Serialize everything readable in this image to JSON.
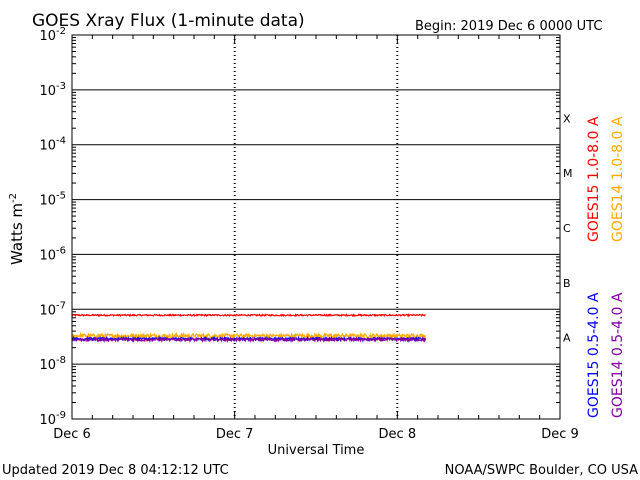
{
  "header": {
    "title": "GOES Xray Flux (1-minute data)",
    "begin": "Begin:  2019 Dec 6 0000 UTC"
  },
  "footer": {
    "updated": "Updated 2019 Dec  8 04:12:12 UTC",
    "credit": "NOAA/SWPC Boulder, CO USA"
  },
  "chart_data": {
    "type": "line",
    "title": "GOES Xray Flux (1-minute data)",
    "xlabel": "Universal Time",
    "ylabel": "Watts m",
    "ylabel_sup": "-2",
    "yscale": "log",
    "ylim": [
      1e-09,
      0.01
    ],
    "xlim": [
      "2019-12-06 00:00",
      "2019-12-09 00:00"
    ],
    "x_ticks": [
      "Dec 6",
      "Dec 7",
      "Dec 8",
      "Dec 9"
    ],
    "y_ticks": [
      {
        "base": "10",
        "exp": "-2",
        "value": 0.01
      },
      {
        "base": "10",
        "exp": "-3",
        "value": 0.001
      },
      {
        "base": "10",
        "exp": "-4",
        "value": 0.0001
      },
      {
        "base": "10",
        "exp": "-5",
        "value": 1e-05
      },
      {
        "base": "10",
        "exp": "-6",
        "value": 1e-06
      },
      {
        "base": "10",
        "exp": "-7",
        "value": 1e-07
      },
      {
        "base": "10",
        "exp": "-8",
        "value": 1e-08
      },
      {
        "base": "10",
        "exp": "-9",
        "value": 1e-09
      }
    ],
    "flare_classes": [
      {
        "label": "X",
        "low": 0.0001,
        "high": 0.001
      },
      {
        "label": "M",
        "low": 1e-05,
        "high": 0.0001
      },
      {
        "label": "C",
        "low": 1e-06,
        "high": 1e-05
      },
      {
        "label": "B",
        "low": 1e-07,
        "high": 1e-06
      },
      {
        "label": "A",
        "low": 1e-08,
        "high": 1e-07
      }
    ],
    "data_end": "2019-12-08 04:12",
    "series": [
      {
        "name": "GOES15 1.0-8.0 A",
        "color": "#ff0000",
        "level": 7.8e-08,
        "noise": 0.03
      },
      {
        "name": "GOES14 1.0-8.0 A",
        "color": "#ffaa00",
        "level": 3.3e-08,
        "noise": 0.08
      },
      {
        "name": "GOES15 0.5-4.0 A",
        "color": "#0000ff",
        "level": 2.9e-08,
        "noise": 0.05
      },
      {
        "name": "GOES14 0.5-4.0 A",
        "color": "#8000a0",
        "level": 2.8e-08,
        "noise": 0.06
      }
    ]
  }
}
